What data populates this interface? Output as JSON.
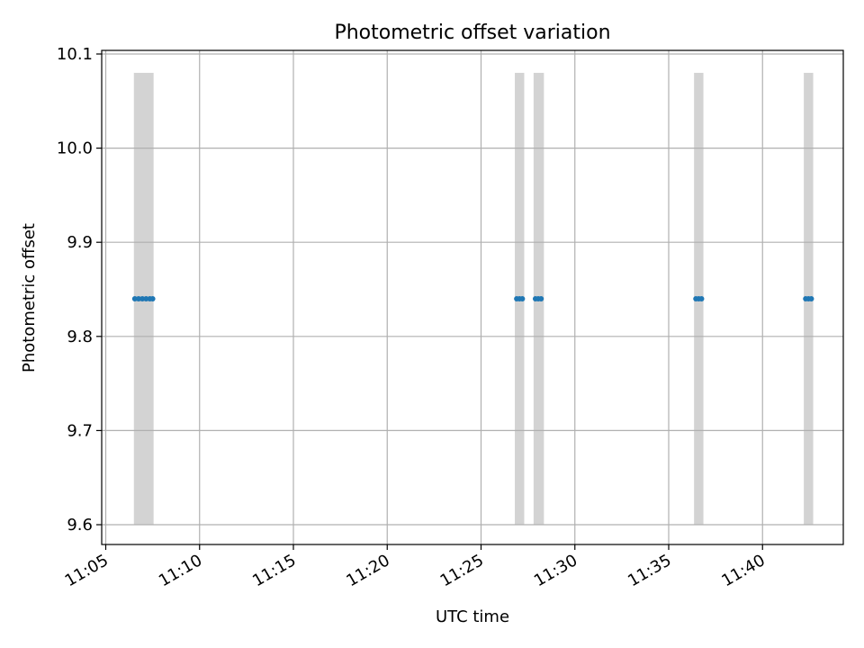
{
  "chart_data": {
    "type": "scatter",
    "title": "Photometric offset variation",
    "xlabel": "UTC time",
    "ylabel": "Photometric offset",
    "grid": true,
    "xlim_minutes": [
      0,
      39.8
    ],
    "x_ticks": [
      {
        "minutes": 0,
        "label": "11:05"
      },
      {
        "minutes": 5,
        "label": "11:10"
      },
      {
        "minutes": 10,
        "label": "11:15"
      },
      {
        "minutes": 15,
        "label": "11:20"
      },
      {
        "minutes": 20,
        "label": "11:25"
      },
      {
        "minutes": 25,
        "label": "11:30"
      },
      {
        "minutes": 30,
        "label": "11:35"
      },
      {
        "minutes": 35,
        "label": "11:40"
      }
    ],
    "ylim": [
      9.579,
      10.101
    ],
    "y_ticks": [
      {
        "value": 9.6,
        "label": "9.6"
      },
      {
        "value": 9.7,
        "label": "9.7"
      },
      {
        "value": 9.8,
        "label": "9.8"
      },
      {
        "value": 9.9,
        "label": "9.9"
      },
      {
        "value": 10.0,
        "label": "10.0"
      },
      {
        "value": 10.1,
        "label": "10.1"
      }
    ],
    "shaded_intervals": [
      {
        "start_minutes": 1.5,
        "end_minutes": 2.55,
        "ymin": 9.6,
        "ymax": 10.08
      },
      {
        "start_minutes": 21.8,
        "end_minutes": 22.3,
        "ymin": 9.6,
        "ymax": 10.08
      },
      {
        "start_minutes": 22.8,
        "end_minutes": 23.35,
        "ymin": 9.6,
        "ymax": 10.08
      },
      {
        "start_minutes": 31.35,
        "end_minutes": 31.85,
        "ymin": 9.6,
        "ymax": 10.08
      },
      {
        "start_minutes": 37.2,
        "end_minutes": 37.7,
        "ymin": 9.6,
        "ymax": 10.08
      }
    ],
    "series": [
      {
        "name": "offset",
        "color": "#1f77b4",
        "x_minutes": [
          1.55,
          1.75,
          1.95,
          2.15,
          2.35,
          2.5,
          21.9,
          22.05,
          22.2,
          22.9,
          23.05,
          23.2,
          31.45,
          31.6,
          31.75,
          37.3,
          37.45,
          37.6
        ],
        "y": [
          9.84,
          9.84,
          9.84,
          9.84,
          9.84,
          9.84,
          9.84,
          9.84,
          9.84,
          9.84,
          9.84,
          9.84,
          9.84,
          9.84,
          9.84,
          9.84,
          9.84,
          9.84
        ]
      }
    ],
    "colors": {
      "shade": "#d3d3d3",
      "grid": "#b0b0b0",
      "axis": "#000000",
      "marker": "#1f77b4"
    }
  }
}
